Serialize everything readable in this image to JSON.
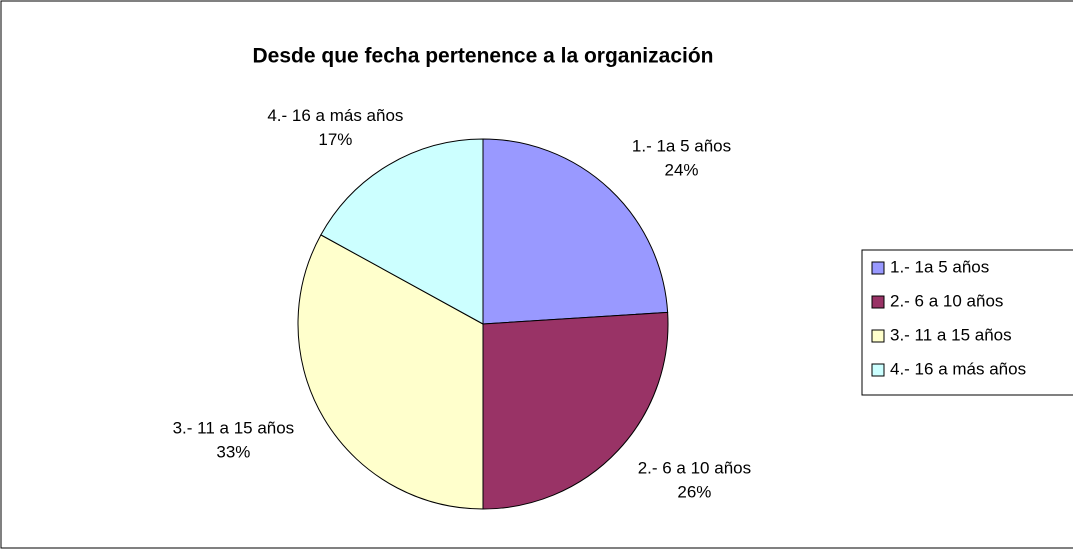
{
  "chart_data": {
    "type": "pie",
    "title": "Desde que fecha pertenence a la organización",
    "categories": [
      "1.- 1a 5 años",
      "2.- 6 a 10 años",
      "3.- 11 a 15 años",
      "4.- 16 a más años"
    ],
    "values": [
      24,
      26,
      33,
      17
    ],
    "value_labels": [
      "24%",
      "26%",
      "33%",
      "17%"
    ],
    "colors": [
      "#9999ff",
      "#993366",
      "#ffffcc",
      "#ccffff"
    ],
    "legend": "right"
  }
}
